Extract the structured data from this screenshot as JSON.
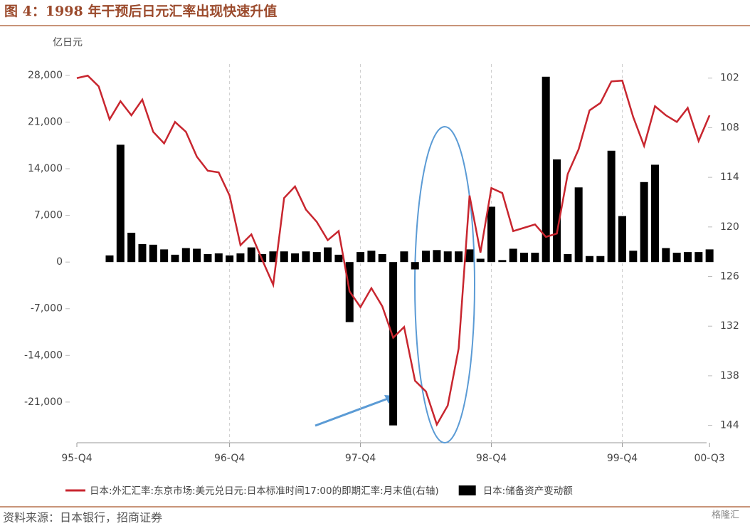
{
  "title": "图 4：1998 年干预后日元汇率出现快速升值",
  "source": "资料来源：日本银行，招商证券",
  "watermark": "格隆汇",
  "chart_data": {
    "type": "bar",
    "y_unit": "亿日元",
    "categories": [
      "95-Q4",
      null,
      null,
      null,
      null,
      null,
      null,
      null,
      null,
      null,
      null,
      null,
      null,
      null,
      "96-Q4",
      null,
      null,
      null,
      null,
      null,
      null,
      null,
      null,
      null,
      null,
      null,
      "97-Q4",
      null,
      null,
      null,
      null,
      null,
      null,
      null,
      null,
      null,
      null,
      null,
      "98-Q4",
      null,
      null,
      null,
      null,
      null,
      null,
      null,
      null,
      null,
      null,
      null,
      "99-Q4",
      null,
      null,
      null,
      null,
      null,
      null,
      null,
      "00-Q3"
    ],
    "ylim": [
      -27100,
      29700
    ],
    "yticks": [
      {
        "value": 28000,
        "label": "28,000"
      },
      {
        "value": 21000,
        "label": "21,000"
      },
      {
        "value": 14000,
        "label": "14,000"
      },
      {
        "value": 7000,
        "label": "7,000"
      },
      0,
      {
        "value": -7000,
        "label": "-7,000"
      },
      {
        "value": -14000,
        "label": "-14,000"
      },
      {
        "value": -21000,
        "label": "-21,000"
      }
    ],
    "y2lim": [
      146.1,
      100.3
    ],
    "y2ticks": [
      102,
      108,
      114,
      120,
      126,
      132,
      138,
      144
    ],
    "grid": true,
    "series": [
      {
        "name": "日本:外汇汇率:东京市场:美元兑日元:日本标准时间17:00的即期汇率:月末值(右轴)",
        "type": "line",
        "axis": "y2",
        "color": "#c8262f",
        "values": [
          102.0,
          101.7,
          103.0,
          107.0,
          104.8,
          106.5,
          104.6,
          108.5,
          109.9,
          107.3,
          108.5,
          111.5,
          113.2,
          113.4,
          116.2,
          122.2,
          120.9,
          124.0,
          127.0,
          116.5,
          115.1,
          117.9,
          119.4,
          121.6,
          120.5,
          127.8,
          129.7,
          127.4,
          129.6,
          133.4,
          132.1,
          138.6,
          139.9,
          143.9,
          141.6,
          134.7,
          116.2,
          123.1,
          115.3,
          115.9,
          120.5,
          120.1,
          119.7,
          121.2,
          120.8,
          113.6,
          110.6,
          105.9,
          105.0,
          102.4,
          102.3,
          106.7,
          110.2,
          105.4,
          106.5,
          107.3,
          105.6,
          109.6,
          106.5
        ]
      },
      {
        "name": "日本:储备资产变动额",
        "type": "bar",
        "axis": "y",
        "color": "#000000",
        "values": [
          null,
          null,
          null,
          1000,
          17600,
          4400,
          2700,
          2600,
          1900,
          1100,
          2100,
          2000,
          1200,
          1300,
          1000,
          1300,
          2200,
          1200,
          1600,
          1600,
          1300,
          1600,
          1500,
          2200,
          1100,
          -9000,
          1500,
          1700,
          1200,
          -24500,
          1600,
          -1100,
          1700,
          1800,
          1600,
          1600,
          1900,
          500,
          8300,
          300,
          2000,
          1400,
          1400,
          27800,
          15400,
          1200,
          11200,
          900,
          900,
          16700,
          6900,
          1700,
          12000,
          14600,
          2100,
          1400,
          1500,
          1500,
          1900
        ]
      }
    ]
  }
}
